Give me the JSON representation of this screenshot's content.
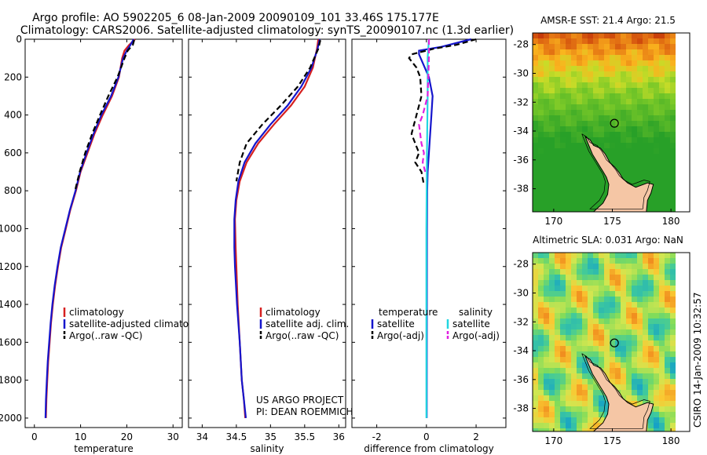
{
  "header": {
    "line1": "Argo profile: AO 5902205_6 08-Jan-2009 20090109_101 33.46S 175.177E",
    "line2": "Climatology: CARS2006. Satellite-adjusted climatology: synTS_20090107.nc (1.3d earlier)"
  },
  "colors": {
    "climatology": "#d62020",
    "satellite": "#1515cc",
    "argo": "#000000",
    "sat_salinity": "#22d6e0",
    "argo_adj_salinity": "#e020e0",
    "land": "#f5c6a5"
  },
  "chart_data": [
    {
      "type": "line",
      "id": "temperature",
      "xlabel": "temperature",
      "xlim": [
        -2,
        32
      ],
      "ylim": [
        0,
        2050
      ],
      "xticks": [
        0,
        10,
        20,
        30
      ],
      "yticks": [
        0,
        200,
        400,
        600,
        800,
        1000,
        1200,
        1400,
        1600,
        1800,
        2000
      ],
      "legend": [
        "climatology",
        "satellite-adjusted climatology",
        "Argo(..raw -QC)"
      ],
      "series": [
        {
          "name": "climatology",
          "style": "solid",
          "color": "#d62020",
          "points": [
            [
              21.8,
              0
            ],
            [
              20.5,
              30
            ],
            [
              19.5,
              60
            ],
            [
              19,
              100
            ],
            [
              18.3,
              200
            ],
            [
              16.8,
              300
            ],
            [
              14.8,
              400
            ],
            [
              13,
              500
            ],
            [
              11.5,
              600
            ],
            [
              10,
              700
            ],
            [
              9,
              800
            ],
            [
              7.8,
              900
            ],
            [
              6.8,
              1000
            ],
            [
              5.8,
              1100
            ],
            [
              5.1,
              1200
            ],
            [
              4.5,
              1300
            ],
            [
              4,
              1400
            ],
            [
              3.6,
              1500
            ],
            [
              3.3,
              1600
            ],
            [
              3,
              1700
            ],
            [
              2.8,
              1800
            ],
            [
              2.6,
              1900
            ],
            [
              2.5,
              2000
            ]
          ]
        },
        {
          "name": "satellite-adjusted climatology",
          "style": "solid",
          "color": "#1515cc",
          "points": [
            [
              21.5,
              0
            ],
            [
              20.8,
              30
            ],
            [
              20,
              60
            ],
            [
              19.2,
              100
            ],
            [
              18.2,
              200
            ],
            [
              16.6,
              300
            ],
            [
              14.5,
              400
            ],
            [
              12.8,
              500
            ],
            [
              11.3,
              600
            ],
            [
              9.9,
              700
            ],
            [
              8.9,
              800
            ],
            [
              7.7,
              900
            ],
            [
              6.7,
              1000
            ],
            [
              5.7,
              1100
            ],
            [
              5,
              1200
            ],
            [
              4.4,
              1300
            ],
            [
              3.9,
              1400
            ],
            [
              3.5,
              1500
            ],
            [
              3.2,
              1600
            ],
            [
              2.9,
              1700
            ],
            [
              2.7,
              1800
            ],
            [
              2.5,
              1900
            ],
            [
              2.4,
              2000
            ]
          ]
        },
        {
          "name": "Argo(..raw -QC)",
          "style": "dash",
          "color": "#000000",
          "points": [
            [
              21.6,
              5
            ],
            [
              21.3,
              30
            ],
            [
              20.2,
              60
            ],
            [
              19.5,
              100
            ],
            [
              18,
              200
            ],
            [
              16,
              300
            ],
            [
              14.2,
              400
            ],
            [
              12.5,
              500
            ],
            [
              11,
              600
            ],
            [
              9.8,
              700
            ],
            [
              8.8,
              800
            ]
          ]
        }
      ],
      "footer": []
    },
    {
      "type": "line",
      "id": "salinity",
      "xlabel": "salinity",
      "xlim": [
        33.8,
        36.1
      ],
      "ylim": [
        0,
        2050
      ],
      "xticks": [
        34,
        34.5,
        35,
        35.5,
        36
      ],
      "yticks": [],
      "legend": [
        "climatology",
        "satellite adj. clim.",
        "Argo(..raw -QC)"
      ],
      "series": [
        {
          "name": "climatology",
          "style": "solid",
          "color": "#d62020",
          "points": [
            [
              35.7,
              0
            ],
            [
              35.68,
              50
            ],
            [
              35.62,
              150
            ],
            [
              35.5,
              250
            ],
            [
              35.3,
              350
            ],
            [
              35.05,
              450
            ],
            [
              34.82,
              550
            ],
            [
              34.65,
              650
            ],
            [
              34.55,
              750
            ],
            [
              34.5,
              850
            ],
            [
              34.48,
              950
            ],
            [
              34.49,
              1100
            ],
            [
              34.5,
              1200
            ],
            [
              34.52,
              1400
            ],
            [
              34.55,
              1600
            ],
            [
              34.58,
              1800
            ],
            [
              34.61,
              1900
            ],
            [
              34.63,
              2000
            ]
          ]
        },
        {
          "name": "satellite adj. clim.",
          "style": "solid",
          "color": "#1515cc",
          "points": [
            [
              35.72,
              0
            ],
            [
              35.69,
              50
            ],
            [
              35.6,
              150
            ],
            [
              35.45,
              250
            ],
            [
              35.25,
              350
            ],
            [
              35.0,
              450
            ],
            [
              34.78,
              550
            ],
            [
              34.62,
              650
            ],
            [
              34.53,
              750
            ],
            [
              34.49,
              850
            ],
            [
              34.47,
              950
            ],
            [
              34.47,
              1100
            ],
            [
              34.48,
              1200
            ],
            [
              34.51,
              1400
            ],
            [
              34.55,
              1600
            ],
            [
              34.58,
              1800
            ],
            [
              34.61,
              1900
            ],
            [
              34.64,
              2000
            ]
          ]
        },
        {
          "name": "Argo(..raw -QC)",
          "style": "dash",
          "color": "#000000",
          "points": [
            [
              35.73,
              5
            ],
            [
              35.7,
              50
            ],
            [
              35.58,
              150
            ],
            [
              35.4,
              250
            ],
            [
              35.15,
              350
            ],
            [
              34.88,
              450
            ],
            [
              34.65,
              550
            ],
            [
              34.55,
              650
            ],
            [
              34.5,
              750
            ]
          ]
        }
      ],
      "footer": [
        "US ARGO PROJECT",
        "PI: DEAN ROEMMICH"
      ]
    },
    {
      "type": "line",
      "id": "difference",
      "xlabel": "difference from climatology",
      "xlim": [
        -3,
        3.2
      ],
      "ylim": [
        0,
        2050
      ],
      "xticks": [
        -2,
        0,
        2
      ],
      "yticks": [],
      "legend_left": [
        "temperature",
        "satellite",
        "Argo(-adj)"
      ],
      "legend_right": [
        "salinity",
        "satellite",
        "Argo(-adj)"
      ],
      "series": [
        {
          "name": "temperature satellite",
          "style": "solid",
          "color": "#1515cc",
          "points": [
            [
              1.8,
              0
            ],
            [
              0.6,
              40
            ],
            [
              -0.3,
              60
            ],
            [
              -0.3,
              80
            ],
            [
              0.1,
              200
            ],
            [
              0.25,
              300
            ],
            [
              0.2,
              400
            ],
            [
              0.15,
              500
            ],
            [
              0.1,
              600
            ],
            [
              0.05,
              700
            ],
            [
              0.03,
              800
            ],
            [
              0.02,
              1000
            ],
            [
              0.01,
              2000
            ]
          ]
        },
        {
          "name": "temperature Argo(-adj)",
          "style": "dash",
          "color": "#000000",
          "points": [
            [
              2,
              0
            ],
            [
              1.2,
              30
            ],
            [
              0.3,
              50
            ],
            [
              -0.6,
              80
            ],
            [
              -0.7,
              100
            ],
            [
              -0.4,
              150
            ],
            [
              -0.25,
              200
            ],
            [
              -0.2,
              300
            ],
            [
              -0.3,
              350
            ],
            [
              -0.4,
              400
            ],
            [
              -0.5,
              450
            ],
            [
              -0.6,
              500
            ],
            [
              -0.45,
              550
            ],
            [
              -0.3,
              600
            ],
            [
              -0.45,
              650
            ],
            [
              -0.2,
              700
            ],
            [
              -0.1,
              770
            ]
          ]
        },
        {
          "name": "salinity satellite",
          "style": "solid",
          "color": "#22d6e0",
          "points": [
            [
              0.1,
              0
            ],
            [
              0.05,
              100
            ],
            [
              0.05,
              300
            ],
            [
              0.02,
              600
            ],
            [
              0.0,
              1000
            ],
            [
              0.0,
              2000
            ]
          ]
        },
        {
          "name": "salinity Argo(-adj)",
          "style": "dash",
          "color": "#e020e0",
          "points": [
            [
              0.1,
              0
            ],
            [
              0.1,
              100
            ],
            [
              0.05,
              300
            ],
            [
              -0.15,
              400
            ],
            [
              -0.3,
              450
            ],
            [
              -0.25,
              500
            ],
            [
              -0.2,
              550
            ],
            [
              -0.1,
              600
            ],
            [
              -0.15,
              650
            ],
            [
              -0.05,
              700
            ]
          ]
        }
      ],
      "footer": []
    }
  ],
  "maps": [
    {
      "id": "sst",
      "title": "AMSR-E SST: 21.4 Argo: 21.5",
      "xticks": [
        "170",
        "175",
        "180"
      ],
      "yticks": [
        "-28",
        "-30",
        "-32",
        "-34",
        "-36",
        "-38"
      ]
    },
    {
      "id": "sla",
      "title": "Altimetric SLA: 0.031 Argo: NaN",
      "xticks": [
        "170",
        "175",
        "180"
      ],
      "yticks": [
        "-28",
        "-30",
        "-32",
        "-34",
        "-36",
        "-38"
      ]
    }
  ],
  "side_label": "CSIRO 14-Jan-2009 10:32:57"
}
